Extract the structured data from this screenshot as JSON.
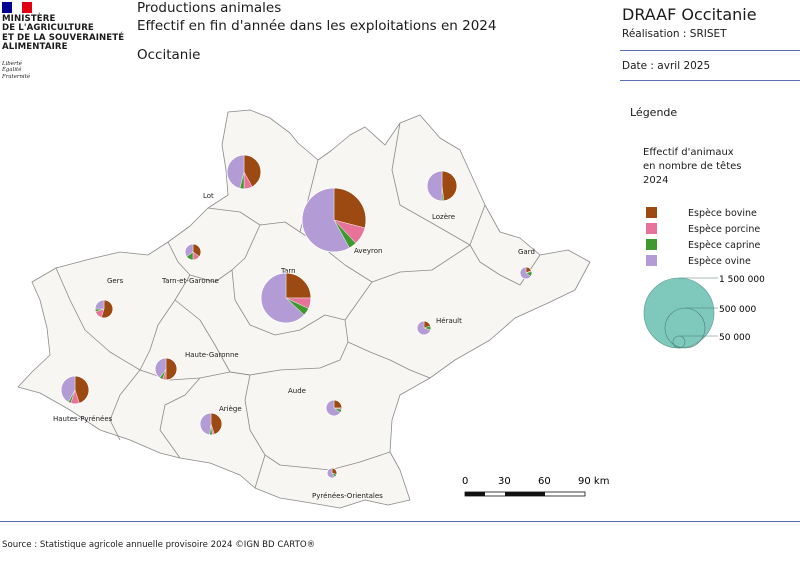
{
  "header": {
    "ministry_lines": [
      "MINISTÈRE",
      "DE L'AGRICULTURE",
      "ET DE LA SOUVERAINETÉ",
      "ALIMENTAIRE"
    ],
    "motto_lines": [
      "Liberté",
      "Égalité",
      "Fraternité"
    ],
    "title_line1": "Productions animales",
    "title_line2": "Effectif en fin d'année dans les exploitations en 2024",
    "region": "Occitanie",
    "org": "DRAAF Occitanie",
    "realisation": "Réalisation : SRISET",
    "date": "Date : avril 2025"
  },
  "legend": {
    "title": "Légende",
    "subtitle_lines": [
      "Effectif d'animaux",
      "en nombre de têtes",
      "2024"
    ],
    "species": [
      {
        "label": "Espèce bovine",
        "color": "#9c4a12"
      },
      {
        "label": "Espèce porcine",
        "color": "#e8739a"
      },
      {
        "label": "Espèce caprine",
        "color": "#3f9a2e"
      },
      {
        "label": "Espèce ovine",
        "color": "#b39bd6"
      }
    ],
    "size_classes": [
      {
        "label": "1 500 000",
        "value": 1500000
      },
      {
        "label": "500 000",
        "value": 500000
      },
      {
        "label": "50 000",
        "value": 50000
      }
    ],
    "size_color": "#7fc8bc"
  },
  "scale": {
    "ticks": [
      "0",
      "30",
      "60",
      "90 km"
    ]
  },
  "source": "Source : Statistique agricole annuelle provisoire 2024 ©IGN BD CARTO®",
  "departments": [
    {
      "name": "Lot",
      "shares": [
        0.42,
        0.08,
        0.04,
        0.46
      ]
    },
    {
      "name": "Aveyron",
      "shares": [
        0.29,
        0.09,
        0.04,
        0.58
      ]
    },
    {
      "name": "Lozère",
      "shares": [
        0.48,
        0.0,
        0.02,
        0.5
      ]
    },
    {
      "name": "Gard",
      "shares": [
        0.18,
        0.03,
        0.14,
        0.65
      ]
    },
    {
      "name": "Tarn-et-Garonne",
      "shares": [
        0.35,
        0.15,
        0.15,
        0.35
      ]
    },
    {
      "name": "Tarn",
      "shares": [
        0.25,
        0.07,
        0.05,
        0.63
      ]
    },
    {
      "name": "Gers",
      "shares": [
        0.55,
        0.15,
        0.05,
        0.25
      ]
    },
    {
      "name": "Hérault",
      "shares": [
        0.2,
        0.0,
        0.1,
        0.7
      ]
    },
    {
      "name": "Haute-Garonne",
      "shares": [
        0.5,
        0.05,
        0.05,
        0.4
      ]
    },
    {
      "name": "Hautes-Pyrénées",
      "shares": [
        0.45,
        0.1,
        0.03,
        0.42
      ]
    },
    {
      "name": "Aude",
      "shares": [
        0.25,
        0.03,
        0.07,
        0.65
      ]
    },
    {
      "name": "Ariège",
      "shares": [
        0.45,
        0.03,
        0.04,
        0.48
      ]
    },
    {
      "name": "Pyrénées-Orientales",
      "shares": [
        0.3,
        0.0,
        0.1,
        0.6
      ]
    }
  ]
}
